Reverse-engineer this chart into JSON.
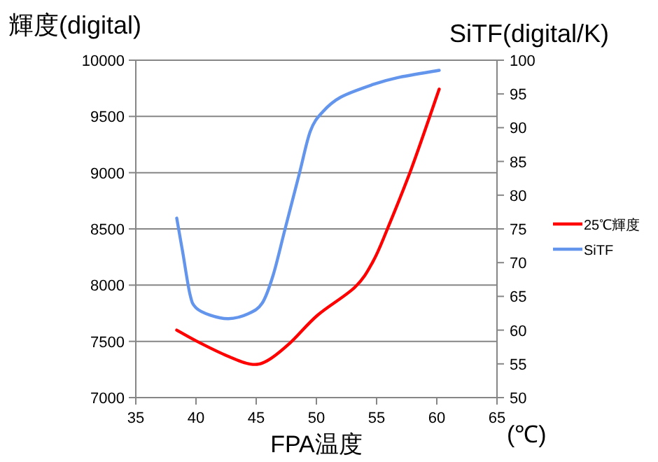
{
  "chart_data": {
    "type": "line",
    "xlabel": "FPA温度",
    "ylabel": "輝度(digital)",
    "y2label": "SiTF(digital/K)",
    "annotations": [
      "(℃)"
    ],
    "xlim": [
      35,
      65
    ],
    "xticks": [
      35,
      40,
      45,
      50,
      55,
      60,
      65
    ],
    "ylim": [
      7000,
      10000
    ],
    "yticks": [
      7000,
      7500,
      8000,
      8500,
      9000,
      9500,
      10000
    ],
    "y2lim": [
      50,
      100
    ],
    "y2ticks": [
      50,
      55,
      60,
      65,
      70,
      75,
      80,
      85,
      90,
      95,
      100
    ],
    "grid": "y",
    "legend": "right",
    "marker": "none",
    "line_style": "solid",
    "series": [
      {
        "name": "25℃輝度",
        "color": "#ff0000",
        "x": [
          38.4,
          40.0,
          42.4,
          44.5,
          45.9,
          47.8,
          50.1,
          53.2,
          54.7,
          55.9,
          57.9,
          60.2
        ],
        "values": [
          7600,
          7505,
          7380,
          7298,
          7327,
          7485,
          7733,
          7982,
          8210,
          8500,
          9039,
          9743
        ]
      },
      {
        "name": "SiTF",
        "color": "#6495ed",
        "axis": "y2",
        "x": [
          38.4,
          38.9,
          39.5,
          40.0,
          41.2,
          42.7,
          44.3,
          45.5,
          46.4,
          47.4,
          48.6,
          49.5,
          50.5,
          52.0,
          54.7,
          56.7,
          60.2
        ],
        "values": [
          76.6,
          71.5,
          65.3,
          63.3,
          62.2,
          61.7,
          62.4,
          64.0,
          68.1,
          75.0,
          83.3,
          89.5,
          92.3,
          94.5,
          96.4,
          97.4,
          98.5
        ]
      }
    ]
  }
}
